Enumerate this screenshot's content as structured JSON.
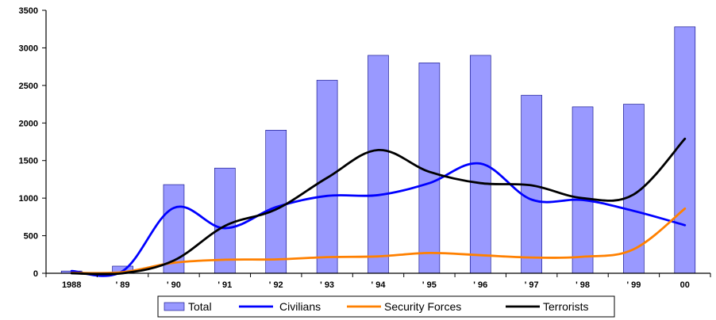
{
  "chart_data": {
    "type": "bar+line",
    "categories": [
      "1988",
      "' 89",
      "' 90",
      "' 91",
      "' 92",
      "' 93",
      "' 94",
      "' 95",
      "' 96",
      "' 97",
      "' 98",
      "' 99",
      "00"
    ],
    "ylim": [
      0,
      3500
    ],
    "yticks": [
      0,
      500,
      1000,
      1500,
      2000,
      2500,
      3000,
      3500
    ],
    "grid": false,
    "legend_position": "bottom",
    "series": [
      {
        "name": "Total",
        "type": "bar",
        "color": "#9999ff",
        "values": [
          30,
          95,
          1180,
          1400,
          1905,
          2570,
          2900,
          2800,
          2900,
          2370,
          2215,
          2250,
          3280
        ]
      },
      {
        "name": "Civilians",
        "type": "line",
        "color": "#0000ff",
        "values": [
          30,
          30,
          870,
          600,
          880,
          1030,
          1040,
          1200,
          1460,
          980,
          975,
          830,
          640
        ]
      },
      {
        "name": "Security Forces",
        "type": "line",
        "color": "#ff8000",
        "values": [
          5,
          15,
          140,
          180,
          185,
          215,
          225,
          270,
          240,
          210,
          220,
          320,
          860
        ]
      },
      {
        "name": "Terrorists",
        "type": "line",
        "color": "#000000",
        "values": [
          0,
          0,
          170,
          630,
          850,
          1270,
          1640,
          1350,
          1200,
          1170,
          1000,
          1050,
          1790
        ]
      }
    ]
  }
}
